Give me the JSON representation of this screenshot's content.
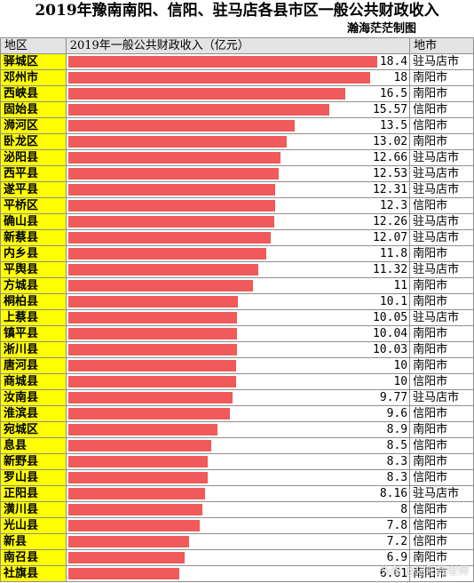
{
  "header": {
    "title": "2019年豫南南阳、信阳、驻马店各县市区一般公共财政收入",
    "author": "瀚海茫茫制图",
    "col_district": "地区",
    "col_value": "2019年一般公共财政收入（亿元）",
    "col_city": "地市"
  },
  "watermark": "头条 @信阳周老师",
  "colors": {
    "bar": "#f05a5a",
    "district_bg": "#ffff00",
    "header_bg": "#e3e3e3"
  },
  "chart_data": {
    "type": "bar",
    "title": "2019年豫南南阳、信阳、驻马店各县市区一般公共财政收入",
    "ylabel": "2019年一般公共财政收入（亿元）",
    "xlim": [
      0,
      18.4
    ],
    "categories": [
      "驿城区",
      "邓州市",
      "西峡县",
      "固始县",
      "浉河区",
      "卧龙区",
      "泌阳县",
      "西平县",
      "遂平县",
      "平桥区",
      "确山县",
      "新蔡县",
      "内乡县",
      "平舆县",
      "方城县",
      "桐柏县",
      "上蔡县",
      "镇平县",
      "淅川县",
      "唐河县",
      "商城县",
      "汝南县",
      "淮滨县",
      "宛城区",
      "息县",
      "新野县",
      "罗山县",
      "正阳县",
      "潢川县",
      "光山县",
      "新县",
      "南召县",
      "社旗县"
    ],
    "values": [
      18.4,
      18,
      16.5,
      15.57,
      13.5,
      13.02,
      12.66,
      12.53,
      12.31,
      12.3,
      12.26,
      12.07,
      11.8,
      11.32,
      11,
      10.1,
      10.05,
      10.04,
      10.03,
      10,
      10,
      9.77,
      9.6,
      8.9,
      8.5,
      8.3,
      8.3,
      8.16,
      8,
      7.8,
      7.2,
      6.9,
      6.61
    ],
    "value_labels": [
      "18.4",
      "18",
      "16.5",
      "15.57",
      "13.5",
      "13.02",
      "12.66",
      "12.53",
      "12.31",
      "12.3",
      "12.26",
      "12.07",
      "11.8",
      "11.32",
      "11",
      "10.1",
      "10.05",
      "10.04",
      "10.03",
      "10",
      "10",
      "9.77",
      "9.6",
      "8.9",
      "8.5",
      "8.3",
      "8.3",
      "8.16",
      "8",
      "7.8",
      "7.2",
      "6.9",
      "6.61"
    ],
    "cities": [
      "驻马店市",
      "南阳市",
      "南阳市",
      "信阳市",
      "信阳市",
      "南阳市",
      "驻马店市",
      "驻马店市",
      "驻马店市",
      "信阳市",
      "驻马店市",
      "驻马店市",
      "南阳市",
      "驻马店市",
      "南阳市",
      "南阳市",
      "驻马店市",
      "南阳市",
      "南阳市",
      "南阳市",
      "信阳市",
      "驻马店市",
      "信阳市",
      "南阳市",
      "信阳市",
      "南阳市",
      "信阳市",
      "驻马店市",
      "信阳市",
      "信阳市",
      "信阳市",
      "南阳市",
      "南阳市"
    ]
  }
}
